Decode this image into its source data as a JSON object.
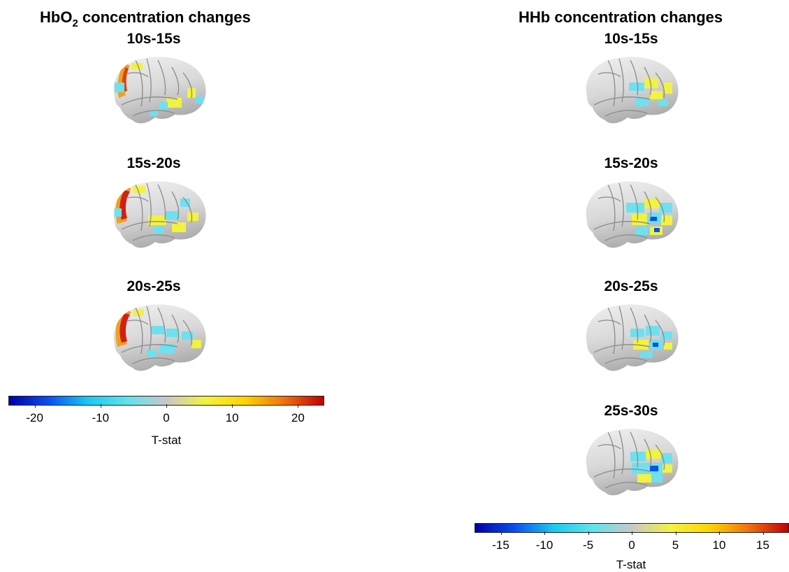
{
  "figure": {
    "left": {
      "title_prefix": "HbO",
      "title_sub": "2",
      "title_suffix": " concentration changes",
      "panels": [
        {
          "label": "10s-15s"
        },
        {
          "label": "15s-20s"
        },
        {
          "label": "20s-25s"
        }
      ],
      "colorbar": {
        "label": "T-stat",
        "range": [
          -24,
          24
        ],
        "ticks": [
          "-20",
          "-10",
          "0",
          "10",
          "20"
        ],
        "tick_values": [
          -20,
          -10,
          0,
          10,
          20
        ]
      }
    },
    "right": {
      "title": "HHb concentration changes",
      "panels": [
        {
          "label": "10s-15s"
        },
        {
          "label": "15s-20s"
        },
        {
          "label": "20s-25s"
        },
        {
          "label": "25s-30s"
        }
      ],
      "colorbar": {
        "label": "T-stat",
        "range": [
          -18,
          18
        ],
        "ticks": [
          "-15",
          "-10",
          "-5",
          "0",
          "5",
          "10",
          "15"
        ],
        "tick_values": [
          -15,
          -10,
          -5,
          0,
          5,
          10,
          15
        ]
      }
    },
    "colormap": [
      "#0000a8",
      "#0a4ff0",
      "#19c9f0",
      "#5fe3ec",
      "#c8c8c8",
      "#f2f240",
      "#ffd400",
      "#f07010",
      "#c00000"
    ]
  }
}
